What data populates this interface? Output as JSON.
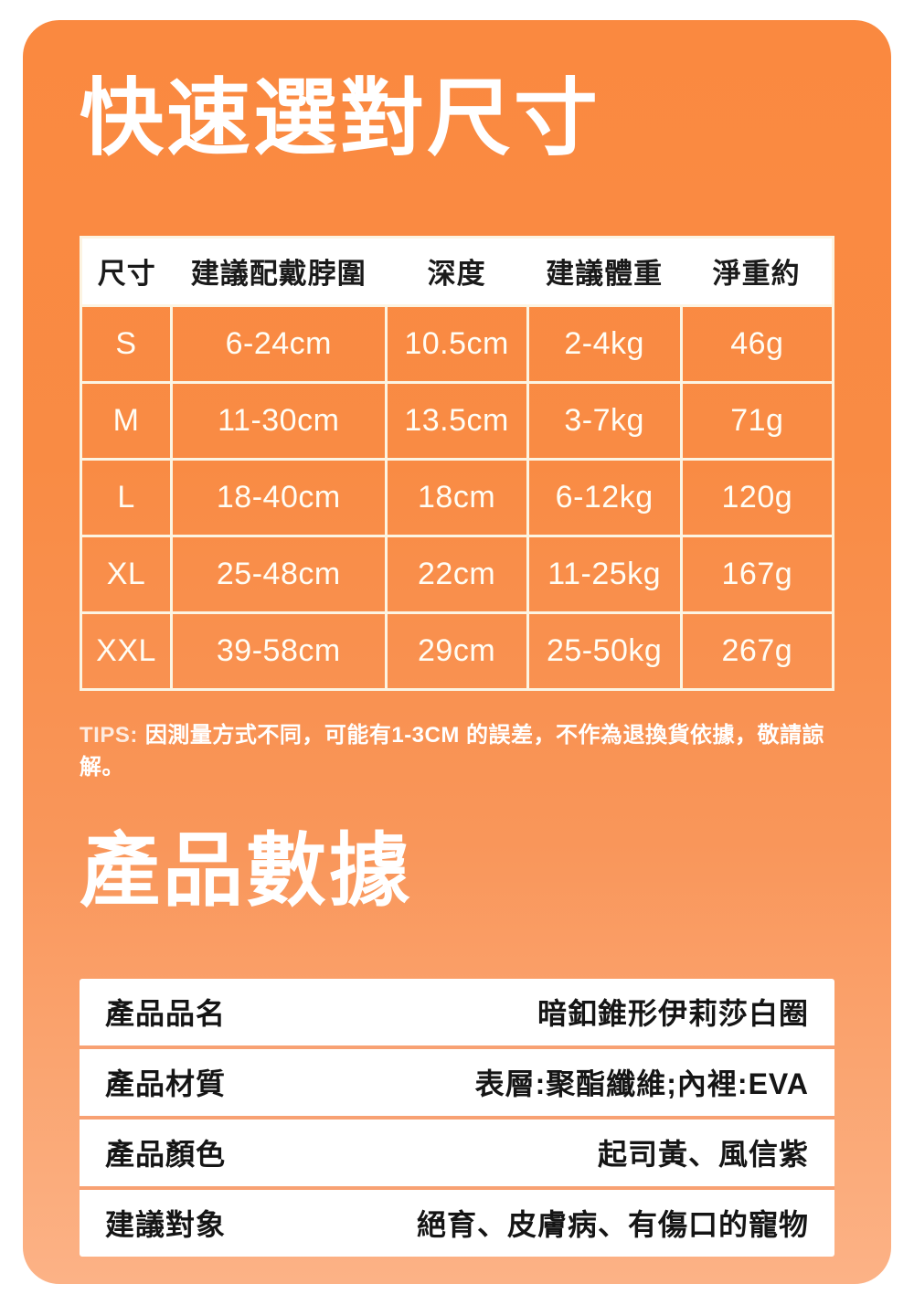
{
  "card": {
    "gradient_top": "#FA8940",
    "gradient_bottom": "#FCB286"
  },
  "size_section": {
    "title": "快速選對尺寸",
    "table": {
      "headers": [
        "尺寸",
        "建議配戴脖圍",
        "深度",
        "建議體重",
        "淨重約"
      ],
      "rows": [
        [
          "S",
          "6-24cm",
          "10.5cm",
          "2-4kg",
          "46g"
        ],
        [
          "M",
          "11-30cm",
          "13.5cm",
          "3-7kg",
          "71g"
        ],
        [
          "L",
          "18-40cm",
          "18cm",
          "6-12kg",
          "120g"
        ],
        [
          "XL",
          "25-48cm",
          "22cm",
          "11-25kg",
          "167g"
        ],
        [
          "XXL",
          "39-58cm",
          "29cm",
          "25-50kg",
          "267g"
        ]
      ]
    },
    "tips_label": "TIPS:",
    "tips_text": "因測量方式不同，可能有1-3CM 的誤差，不作為退換貨依據，敬請諒解。"
  },
  "specs_section": {
    "title": "產品數據",
    "rows": [
      {
        "label": "產品品名",
        "value": "暗釦錐形伊莉莎白圈"
      },
      {
        "label": "產品材質",
        "value": "表層:聚酯纖維;內裡:EVA"
      },
      {
        "label": "產品顏色",
        "value": "起司黃、風信紫"
      },
      {
        "label": "建議對象",
        "value": "絕育、皮膚病、有傷口的寵物"
      }
    ]
  },
  "chart_data": {
    "type": "table",
    "title": "快速選對尺寸",
    "columns": [
      "尺寸",
      "建議配戴脖圍",
      "深度",
      "建議體重",
      "淨重約"
    ],
    "rows": [
      [
        "S",
        "6-24cm",
        "10.5cm",
        "2-4kg",
        "46g"
      ],
      [
        "M",
        "11-30cm",
        "13.5cm",
        "3-7kg",
        "71g"
      ],
      [
        "L",
        "18-40cm",
        "18cm",
        "6-12kg",
        "120g"
      ],
      [
        "XL",
        "25-48cm",
        "22cm",
        "11-25kg",
        "167g"
      ],
      [
        "XXL",
        "39-58cm",
        "29cm",
        "25-50kg",
        "267g"
      ]
    ]
  }
}
